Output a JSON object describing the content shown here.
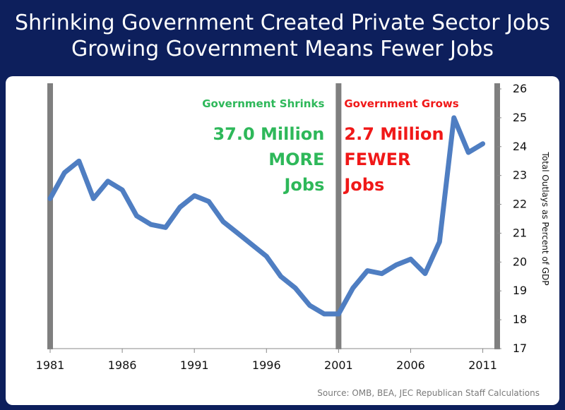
{
  "title": {
    "line1": "Shrinking Government Created Private Sector Jobs",
    "line2": "Growing Government Means Fewer Jobs"
  },
  "source": "Source: OMB, BEA, JEC Republican Staff Calculations",
  "colors": {
    "background": "#0d1f5c",
    "line": "#4f7ec2",
    "shrink": "#2eb85a",
    "grow": "#f01818",
    "divider": "#7f7f7f"
  },
  "annotations": {
    "shrink": {
      "header": "Government Shrinks",
      "lines": [
        "37.0 Million",
        "MORE",
        "Jobs"
      ]
    },
    "grow": {
      "header": "Government Grows",
      "lines": [
        "2.7 Million",
        "FEWER",
        "Jobs"
      ]
    }
  },
  "chart_data": {
    "type": "line",
    "title": "",
    "xlabel": "",
    "ylabel": "Total Outlays as Percent of GDP",
    "xlim": [
      1981,
      2012
    ],
    "ylim": [
      17,
      26
    ],
    "x_ticks": [
      1981,
      1986,
      1991,
      1996,
      2001,
      2006,
      2011
    ],
    "y_ticks": [
      17,
      18,
      19,
      20,
      21,
      22,
      23,
      24,
      25,
      26
    ],
    "dividers": [
      1981,
      2001
    ],
    "grid": false,
    "series": [
      {
        "x": [
          1981,
          1982,
          1983,
          1984,
          1985,
          1986,
          1987,
          1988,
          1989,
          1990,
          1991,
          1992,
          1993,
          1994,
          1995,
          1996,
          1997,
          1998,
          1999,
          2000,
          2001,
          2002,
          2003,
          2004,
          2005,
          2006,
          2007,
          2008,
          2009,
          2010,
          2011
        ],
        "values": [
          22.2,
          23.1,
          23.5,
          22.2,
          22.8,
          22.5,
          21.6,
          21.3,
          21.2,
          21.9,
          22.3,
          22.1,
          21.4,
          21.0,
          20.6,
          20.2,
          19.5,
          19.1,
          18.5,
          18.2,
          18.2,
          19.1,
          19.7,
          19.6,
          19.9,
          20.1,
          19.6,
          20.7,
          25.0,
          23.8,
          24.1
        ]
      }
    ]
  }
}
